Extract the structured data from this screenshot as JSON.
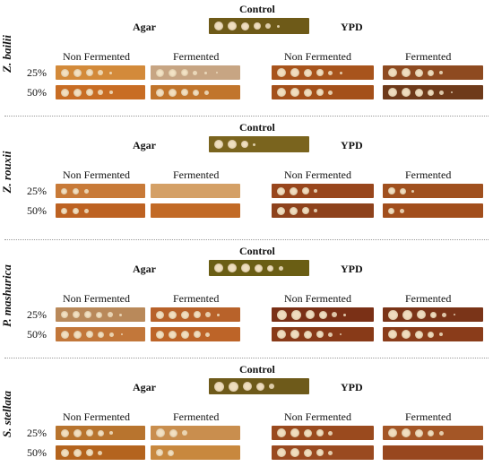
{
  "labels": {
    "control": "Control",
    "agar": "Agar",
    "ypd": "YPD",
    "non_fermented": "Non Fermented",
    "fermented": "Fermented",
    "row_25": "25%",
    "row_50": "50%"
  },
  "panels": [
    {
      "species": "Z. bailii",
      "control": {
        "bg": "#6e5a18",
        "spots": [
          10,
          10,
          9,
          8,
          6,
          3
        ]
      },
      "rows": [
        {
          "strips": [
            {
              "bg": "#d38a3a",
              "spots": [
                9,
                9,
                8,
                6,
                3
              ]
            },
            {
              "bg": "#c7a583",
              "spots": [
                9,
                9,
                8,
                5,
                3,
                2
              ]
            },
            {
              "bg": "#a8541c",
              "spots": [
                10,
                10,
                9,
                8,
                5,
                3
              ]
            },
            {
              "bg": "#8e4a20",
              "spots": [
                10,
                10,
                9,
                7,
                4
              ]
            }
          ]
        },
        {
          "strips": [
            {
              "bg": "#c86d24",
              "spots": [
                9,
                9,
                8,
                6,
                4
              ]
            },
            {
              "bg": "#c1752c",
              "spots": [
                9,
                9,
                8,
                7,
                5
              ]
            },
            {
              "bg": "#a4501a",
              "spots": [
                10,
                10,
                9,
                8,
                5
              ]
            },
            {
              "bg": "#6e3a1a",
              "spots": [
                10,
                10,
                9,
                7,
                5,
                2
              ]
            }
          ]
        }
      ]
    },
    {
      "species": "Z. rouxii",
      "control": {
        "bg": "#7a641e",
        "spots": [
          10,
          10,
          8,
          3
        ]
      },
      "rows": [
        {
          "strips": [
            {
              "bg": "#c87a38",
              "spots": [
                7,
                7,
                5
              ]
            },
            {
              "bg": "#d4a066",
              "spots": []
            },
            {
              "bg": "#98461c",
              "spots": [
                9,
                9,
                8,
                4
              ]
            },
            {
              "bg": "#a0501e",
              "spots": [
                8,
                7,
                3
              ]
            }
          ]
        },
        {
          "strips": [
            {
              "bg": "#bd6222",
              "spots": [
                7,
                7,
                5
              ]
            },
            {
              "bg": "#c26a26",
              "spots": []
            },
            {
              "bg": "#8e421c",
              "spots": [
                9,
                9,
                8,
                4
              ]
            },
            {
              "bg": "#a24e1c",
              "spots": [
                7,
                5
              ]
            }
          ]
        }
      ]
    },
    {
      "species": "P. mashurica",
      "control": {
        "bg": "#6a5e14",
        "spots": [
          10,
          10,
          10,
          9,
          7,
          5
        ]
      },
      "rows": [
        {
          "strips": [
            {
              "bg": "#b9895a",
              "spots": [
                8,
                8,
                8,
                7,
                6,
                3
              ]
            },
            {
              "bg": "#b8622a",
              "spots": [
                9,
                9,
                9,
                8,
                6,
                3
              ]
            },
            {
              "bg": "#7a3016",
              "spots": [
                11,
                11,
                10,
                9,
                6,
                3
              ]
            },
            {
              "bg": "#7a3418",
              "spots": [
                11,
                11,
                10,
                7,
                5,
                2
              ]
            }
          ]
        },
        {
          "strips": [
            {
              "bg": "#c2773a",
              "spots": [
                9,
                9,
                8,
                7,
                5,
                2
              ]
            },
            {
              "bg": "#bd6428",
              "spots": [
                9,
                9,
                9,
                8,
                5
              ]
            },
            {
              "bg": "#883a18",
              "spots": [
                10,
                10,
                9,
                8,
                5,
                2
              ]
            },
            {
              "bg": "#8a3c1a",
              "spots": [
                10,
                10,
                9,
                7,
                4
              ]
            }
          ]
        }
      ]
    },
    {
      "species": "S. stellata",
      "control": {
        "bg": "#6e5a1a",
        "spots": [
          11,
          11,
          10,
          9,
          6
        ]
      },
      "rows": [
        {
          "strips": [
            {
              "bg": "#b8742e",
              "spots": [
                9,
                9,
                8,
                7,
                4
              ]
            },
            {
              "bg": "#c98e4e",
              "spots": [
                10,
                9,
                6
              ]
            },
            {
              "bg": "#9a4a1e",
              "spots": [
                10,
                10,
                9,
                8,
                5
              ]
            },
            {
              "bg": "#a45626",
              "spots": [
                10,
                10,
                9,
                7,
                5
              ]
            }
          ]
        },
        {
          "strips": [
            {
              "bg": "#b4641e",
              "spots": [
                9,
                9,
                8,
                5
              ]
            },
            {
              "bg": "#c8883e",
              "spots": [
                8,
                7
              ]
            },
            {
              "bg": "#9a4a20",
              "spots": [
                10,
                10,
                9,
                8,
                5
              ]
            },
            {
              "bg": "#98471e",
              "spots": []
            }
          ]
        }
      ]
    }
  ]
}
